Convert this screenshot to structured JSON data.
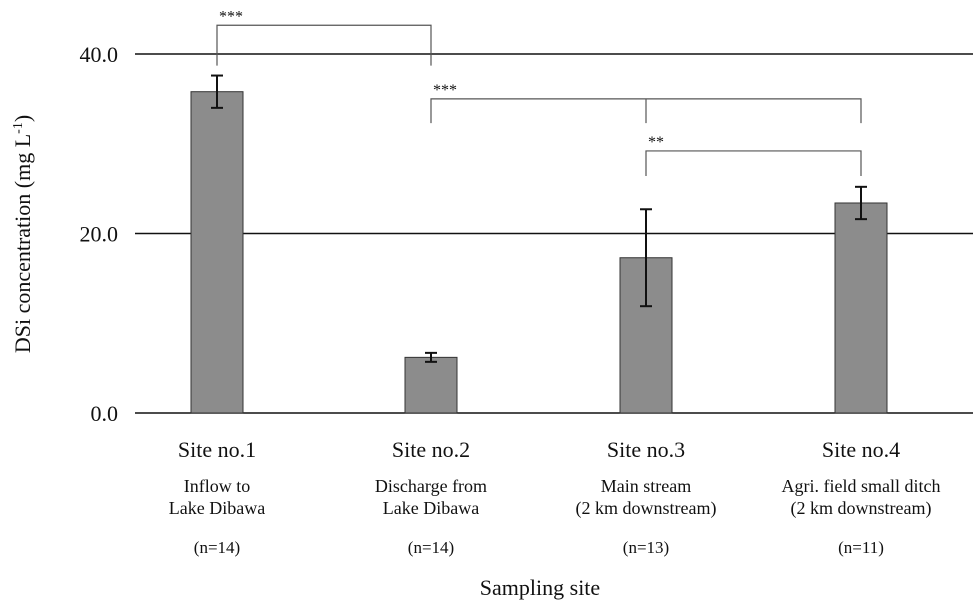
{
  "chart_data": {
    "type": "bar",
    "title": "",
    "xlabel": "Sampling site",
    "ylabel_main": "DSi concentration (mg L",
    "ylabel_sup": "-1",
    "ylabel_close": ")",
    "ylim": [
      0,
      40
    ],
    "yticks": [
      0,
      20,
      40
    ],
    "ytick_labels": [
      "0.0",
      "20.0",
      "40.0"
    ],
    "grid_y": [
      20,
      40
    ],
    "categories": [
      "Site no.1",
      "Site no.2",
      "Site no.3",
      "Site no.4"
    ],
    "descriptions": [
      [
        "Inflow to",
        "Lake Dibawa"
      ],
      [
        "Discharge from",
        "Lake Dibawa"
      ],
      [
        "Main stream",
        "(2 km downstream)"
      ],
      [
        "Agri. field small ditch",
        "(2 km downstream)"
      ]
    ],
    "n_labels": [
      "(n=14)",
      "(n=14)",
      "(n=13)",
      "(n=11)"
    ],
    "values": [
      35.8,
      6.2,
      17.3,
      23.4
    ],
    "errors": [
      1.8,
      0.5,
      5.4,
      1.8
    ],
    "bar_color": "#8c8c8c",
    "significance": [
      {
        "from": 0,
        "to": 1,
        "label": "***",
        "level": 43.2
      },
      {
        "from": 1,
        "to": 3,
        "label": "***",
        "level": 35.0
      },
      {
        "from": 2,
        "to": 3,
        "label": "**",
        "level": 29.2
      }
    ]
  }
}
